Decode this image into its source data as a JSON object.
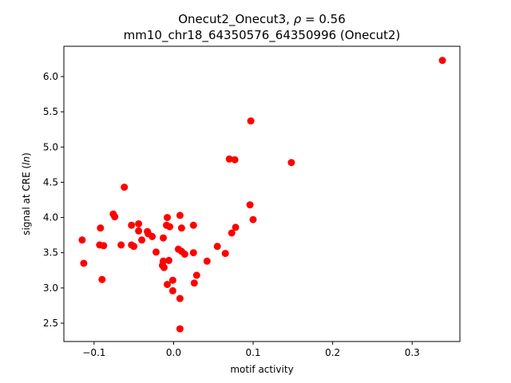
{
  "chart_data": {
    "type": "scatter",
    "title_line1_prefix": "Onecut2_Onecut3, ",
    "title_rho_symbol": "ρ",
    "title_rho_value": " = 0.56",
    "title_line2": "mm10_chr18_64350576_64350996 (Onecut2)",
    "xlabel": "motif activity",
    "ylabel_prefix": "signal at CRE (",
    "ylabel_italic": "ln",
    "ylabel_suffix": ")",
    "xlim": [
      -0.138,
      0.36
    ],
    "ylim": [
      2.24,
      6.43
    ],
    "grid": false,
    "marker_color": "#ff0000",
    "x_ticks": [
      {
        "value": -0.1,
        "label": "−0.1"
      },
      {
        "value": 0.0,
        "label": "0.0"
      },
      {
        "value": 0.1,
        "label": "0.1"
      },
      {
        "value": 0.2,
        "label": "0.2"
      },
      {
        "value": 0.3,
        "label": "0.3"
      }
    ],
    "y_ticks": [
      {
        "value": 2.5,
        "label": "2.5"
      },
      {
        "value": 3.0,
        "label": "3.0"
      },
      {
        "value": 3.5,
        "label": "3.5"
      },
      {
        "value": 4.0,
        "label": "4.0"
      },
      {
        "value": 4.5,
        "label": "4.5"
      },
      {
        "value": 5.0,
        "label": "5.0"
      },
      {
        "value": 5.5,
        "label": "5.5"
      },
      {
        "value": 6.0,
        "label": "6.0"
      }
    ],
    "points": [
      {
        "x": 0.338,
        "y": 6.23
      },
      {
        "x": 0.097,
        "y": 5.37
      },
      {
        "x": 0.148,
        "y": 4.78
      },
      {
        "x": 0.07,
        "y": 4.83
      },
      {
        "x": 0.077,
        "y": 4.82
      },
      {
        "x": 0.096,
        "y": 4.18
      },
      {
        "x": 0.1,
        "y": 3.97
      },
      {
        "x": 0.078,
        "y": 3.86
      },
      {
        "x": 0.073,
        "y": 3.78
      },
      {
        "x": 0.055,
        "y": 3.59
      },
      {
        "x": 0.065,
        "y": 3.49
      },
      {
        "x": 0.042,
        "y": 3.38
      },
      {
        "x": 0.029,
        "y": 3.18
      },
      {
        "x": 0.026,
        "y": 3.07
      },
      {
        "x": 0.025,
        "y": 3.89
      },
      {
        "x": 0.025,
        "y": 3.5
      },
      {
        "x": 0.008,
        "y": 4.03
      },
      {
        "x": 0.01,
        "y": 3.85
      },
      {
        "x": 0.006,
        "y": 3.55
      },
      {
        "x": 0.01,
        "y": 3.52
      },
      {
        "x": 0.014,
        "y": 3.48
      },
      {
        "x": 0.008,
        "y": 2.85
      },
      {
        "x": 0.008,
        "y": 2.42
      },
      {
        "x": -0.001,
        "y": 3.11
      },
      {
        "x": -0.001,
        "y": 2.96
      },
      {
        "x": -0.008,
        "y": 4.0
      },
      {
        "x": -0.009,
        "y": 3.89
      },
      {
        "x": -0.005,
        "y": 3.87
      },
      {
        "x": -0.006,
        "y": 3.39
      },
      {
        "x": -0.008,
        "y": 3.05
      },
      {
        "x": -0.013,
        "y": 3.71
      },
      {
        "x": -0.013,
        "y": 3.38
      },
      {
        "x": -0.014,
        "y": 3.32
      },
      {
        "x": -0.012,
        "y": 3.29
      },
      {
        "x": -0.022,
        "y": 3.51
      },
      {
        "x": -0.027,
        "y": 3.73
      },
      {
        "x": -0.033,
        "y": 3.8
      },
      {
        "x": -0.032,
        "y": 3.77
      },
      {
        "x": -0.044,
        "y": 3.91
      },
      {
        "x": -0.044,
        "y": 3.81
      },
      {
        "x": -0.04,
        "y": 3.68
      },
      {
        "x": -0.053,
        "y": 3.89
      },
      {
        "x": -0.053,
        "y": 3.61
      },
      {
        "x": -0.05,
        "y": 3.59
      },
      {
        "x": -0.062,
        "y": 4.43
      },
      {
        "x": -0.066,
        "y": 3.61
      },
      {
        "x": -0.076,
        "y": 4.05
      },
      {
        "x": -0.074,
        "y": 4.01
      },
      {
        "x": -0.092,
        "y": 3.85
      },
      {
        "x": -0.093,
        "y": 3.61
      },
      {
        "x": -0.088,
        "y": 3.6
      },
      {
        "x": -0.09,
        "y": 3.12
      },
      {
        "x": -0.115,
        "y": 3.68
      },
      {
        "x": -0.113,
        "y": 3.35
      }
    ]
  }
}
